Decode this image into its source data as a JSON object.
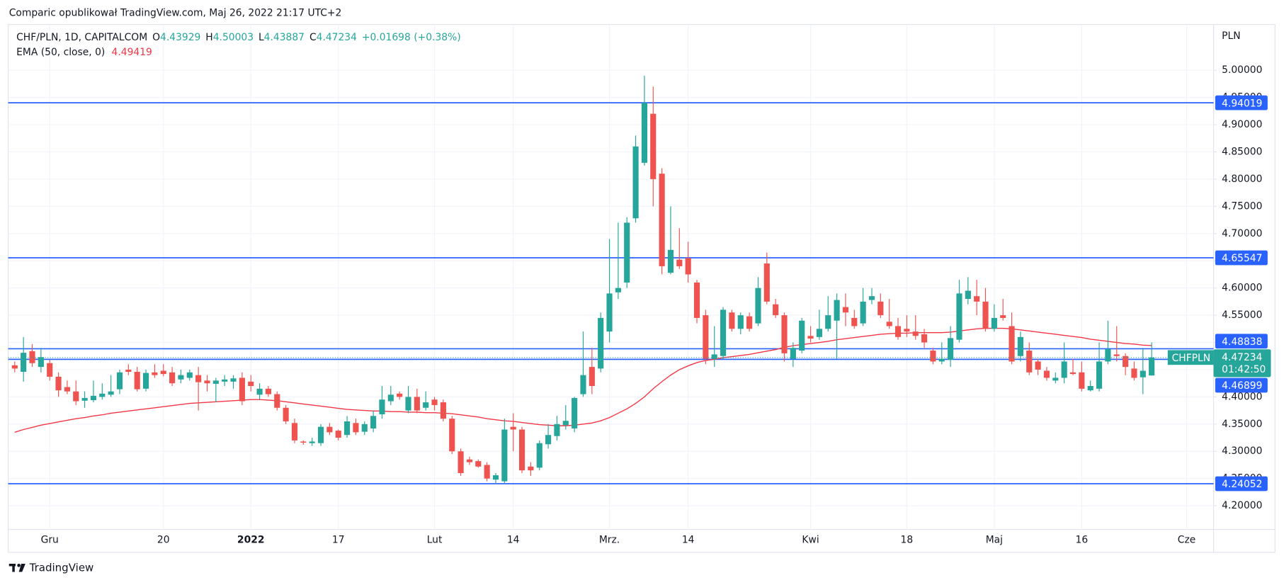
{
  "published": "Comparic opublikował TradingView.com, Maj 26, 2022 21:17 UTC+2",
  "brand": "TradingView",
  "chart_data": {
    "type": "candlestick",
    "title": "CHF/PLN, 1D, CAPITALCOM",
    "ohlc_labels": [
      "O",
      "H",
      "L",
      "C"
    ],
    "change": "+0.01698 (+0.38%)",
    "y_axis_label": "PLN",
    "countdown": "01:42:50",
    "grid": true,
    "ylim": [
      4.1565,
      5.084
    ],
    "yticks": [
      {
        "value": 4.2,
        "label": "4.20000"
      },
      {
        "value": 4.25,
        "label": "4.25000"
      },
      {
        "value": 4.3,
        "label": "4.30000"
      },
      {
        "value": 4.35,
        "label": "4.35000"
      },
      {
        "value": 4.4,
        "label": "4.40000"
      },
      {
        "value": 4.45,
        "label": "4.45000"
      },
      {
        "value": 4.5,
        "label": "4.50000"
      },
      {
        "value": 4.55,
        "label": "4.55000"
      },
      {
        "value": 4.6,
        "label": "4.60000"
      },
      {
        "value": 4.65,
        "label": "4.65000"
      },
      {
        "value": 4.7,
        "label": "4.70000"
      },
      {
        "value": 4.75,
        "label": "4.75000"
      },
      {
        "value": 4.8,
        "label": "4.80000"
      },
      {
        "value": 4.85,
        "label": "4.85000"
      },
      {
        "value": 4.9,
        "label": "4.90000"
      },
      {
        "value": 4.95,
        "label": "4.95000"
      },
      {
        "value": 5,
        "label": "5.00000"
      }
    ],
    "hlines": [
      4.94019,
      4.65547,
      4.48838,
      4.46899,
      4.24052
    ],
    "hline_color": "#2962ff",
    "categories": [
      null,
      null,
      null,
      null,
      "Gru",
      null,
      null,
      null,
      null,
      null,
      null,
      null,
      null,
      null,
      null,
      null,
      null,
      "20",
      null,
      null,
      null,
      null,
      null,
      null,
      null,
      null,
      null,
      "2022",
      null,
      null,
      null,
      null,
      null,
      null,
      null,
      null,
      null,
      "17",
      null,
      null,
      null,
      null,
      null,
      null,
      null,
      null,
      null,
      null,
      "Lut",
      null,
      null,
      null,
      null,
      null,
      null,
      null,
      null,
      "14",
      null,
      null,
      null,
      null,
      null,
      null,
      null,
      null,
      null,
      null,
      "Mrz.",
      null,
      null,
      null,
      null,
      null,
      null,
      null,
      null,
      "14",
      null,
      null,
      null,
      null,
      null,
      null,
      null,
      null,
      null,
      null,
      null,
      null,
      null,
      "Kwi",
      null,
      null,
      null,
      null,
      null,
      null,
      null,
      null,
      null,
      null,
      "18",
      null,
      null,
      null,
      null,
      null,
      null,
      null,
      null,
      null,
      "Maj",
      null,
      null,
      null,
      null,
      null,
      null,
      null,
      null,
      null,
      "16",
      null,
      null,
      null,
      null,
      null,
      null,
      null,
      null,
      null,
      null,
      null,
      "Cze"
    ],
    "series": [
      {
        "name": "CHFPLN",
        "type": "candlestick",
        "up_color": "#26a69a",
        "down_color": "#ef5350",
        "open": [
          4.458,
          4.446,
          4.484,
          4.455,
          4.462,
          4.437,
          4.418,
          4.41,
          4.393,
          4.394,
          4.4,
          4.404,
          4.414,
          4.45,
          4.446,
          4.415,
          4.445,
          4.448,
          4.445,
          4.432,
          4.435,
          4.44,
          4.43,
          4.424,
          4.428,
          4.428,
          4.435,
          4.428,
          4.404,
          4.415,
          4.405,
          4.38,
          4.352,
          4.318,
          4.315,
          4.315,
          4.345,
          4.338,
          4.33,
          4.352,
          4.336,
          4.342,
          4.368,
          4.392,
          4.406,
          4.375,
          4.4,
          4.38,
          4.395,
          4.39,
          4.36,
          4.3,
          4.285,
          4.282,
          4.275,
          4.248,
          4.245,
          4.345,
          4.34,
          4.272,
          4.27,
          4.313,
          4.328,
          4.348,
          4.342,
          4.405,
          4.455,
          4.452,
          4.52,
          4.592,
          4.61,
          4.728,
          4.83,
          4.92,
          4.81,
          4.628,
          4.652,
          4.655,
          4.61,
          4.55,
          4.47,
          4.475,
          4.555,
          4.525,
          4.548,
          4.535,
          4.645,
          4.57,
          4.55,
          4.47,
          4.485,
          4.512,
          4.51,
          4.525,
          4.54,
          4.565,
          4.545,
          4.535,
          4.578,
          4.575,
          4.538,
          4.53,
          4.525,
          4.52,
          4.515,
          4.485,
          4.465,
          4.468,
          4.505,
          4.58,
          4.585,
          4.575,
          4.525,
          4.55,
          4.53,
          4.475,
          4.485,
          4.465,
          4.448,
          4.43,
          4.435,
          4.445,
          4.445,
          4.412,
          4.415,
          4.465,
          4.478,
          4.475,
          4.452,
          4.436,
          4.43929,
          null,
          null,
          null,
          null
        ],
        "high": [
          4.465,
          4.51,
          4.497,
          4.49,
          4.468,
          4.445,
          4.43,
          4.43,
          4.41,
          4.43,
          4.425,
          4.44,
          4.45,
          4.46,
          4.455,
          4.45,
          4.46,
          4.46,
          4.455,
          4.45,
          4.45,
          4.455,
          4.44,
          4.435,
          4.44,
          4.44,
          4.445,
          4.44,
          4.425,
          4.42,
          4.41,
          4.385,
          4.36,
          4.32,
          4.325,
          4.35,
          4.352,
          4.34,
          4.365,
          4.36,
          4.355,
          4.375,
          4.42,
          4.42,
          4.41,
          4.42,
          4.415,
          4.41,
          4.4,
          4.395,
          4.365,
          4.305,
          4.29,
          4.285,
          4.28,
          4.26,
          4.36,
          4.37,
          4.345,
          4.28,
          4.32,
          4.35,
          4.365,
          4.385,
          4.4,
          4.52,
          4.49,
          4.555,
          4.69,
          4.72,
          4.73,
          4.88,
          4.99,
          4.97,
          4.82,
          4.75,
          4.71,
          4.685,
          4.615,
          4.56,
          4.53,
          4.565,
          4.56,
          4.555,
          4.555,
          4.62,
          4.665,
          4.58,
          4.555,
          4.5,
          4.545,
          4.53,
          4.56,
          4.585,
          4.59,
          4.59,
          4.56,
          4.6,
          4.6,
          4.59,
          4.58,
          4.545,
          4.55,
          4.55,
          4.525,
          4.49,
          4.5,
          4.53,
          4.615,
          4.62,
          4.615,
          4.6,
          4.57,
          4.58,
          4.555,
          4.52,
          4.5,
          4.47,
          4.455,
          4.445,
          4.5,
          4.47,
          4.465,
          4.43,
          4.5,
          4.54,
          4.53,
          4.48,
          4.465,
          4.49,
          4.50003,
          null,
          null,
          null,
          null
        ],
        "low": [
          4.445,
          4.428,
          4.455,
          4.445,
          4.43,
          4.4,
          4.405,
          4.385,
          4.38,
          4.39,
          4.395,
          4.4,
          4.405,
          4.44,
          4.41,
          4.41,
          4.435,
          4.438,
          4.42,
          4.425,
          4.43,
          4.375,
          4.41,
          4.39,
          4.42,
          4.415,
          4.385,
          4.41,
          4.395,
          4.4,
          4.375,
          4.35,
          4.315,
          4.312,
          4.31,
          4.31,
          4.33,
          4.32,
          4.325,
          4.33,
          4.33,
          4.335,
          4.36,
          4.385,
          4.395,
          4.37,
          4.37,
          4.375,
          4.375,
          4.355,
          4.295,
          4.255,
          4.275,
          4.27,
          4.245,
          4.24,
          4.24,
          4.3,
          4.26,
          4.255,
          4.265,
          4.305,
          4.32,
          4.34,
          4.335,
          4.4,
          4.405,
          4.445,
          4.5,
          4.58,
          4.6,
          4.72,
          4.825,
          4.75,
          4.625,
          4.625,
          4.635,
          4.61,
          4.535,
          4.46,
          4.455,
          4.47,
          4.52,
          4.515,
          4.52,
          4.53,
          4.57,
          4.545,
          4.465,
          4.455,
          4.48,
          4.5,
          4.505,
          4.52,
          4.47,
          4.53,
          4.525,
          4.53,
          4.57,
          4.545,
          4.525,
          4.505,
          4.51,
          4.505,
          4.49,
          4.46,
          4.46,
          4.455,
          4.5,
          4.57,
          4.55,
          4.52,
          4.52,
          4.54,
          4.46,
          4.465,
          4.44,
          4.44,
          4.43,
          4.425,
          4.425,
          4.44,
          4.41,
          4.41,
          4.41,
          4.46,
          4.465,
          4.44,
          4.43,
          4.405,
          4.43887,
          null,
          null,
          null,
          null
        ],
        "close": [
          4.452,
          4.481,
          4.462,
          4.473,
          4.437,
          4.412,
          4.41,
          4.392,
          4.398,
          4.402,
          4.406,
          4.41,
          4.445,
          4.446,
          4.414,
          4.444,
          4.44,
          4.442,
          4.425,
          4.44,
          4.445,
          4.427,
          4.425,
          4.43,
          4.432,
          4.434,
          4.392,
          4.42,
          4.415,
          4.405,
          4.38,
          4.355,
          4.32,
          4.316,
          4.318,
          4.345,
          4.335,
          4.325,
          4.355,
          4.335,
          4.35,
          4.365,
          4.395,
          4.404,
          4.4,
          4.4,
          4.375,
          4.39,
          4.385,
          4.36,
          4.3,
          4.26,
          4.28,
          4.272,
          4.25,
          4.256,
          4.34,
          4.34,
          4.265,
          4.265,
          4.315,
          4.33,
          4.35,
          4.356,
          4.398,
          4.44,
          4.42,
          4.545,
          4.59,
          4.6,
          4.72,
          4.86,
          4.94,
          4.8,
          4.64,
          4.67,
          4.64,
          4.625,
          4.545,
          4.47,
          4.478,
          4.56,
          4.525,
          4.55,
          4.525,
          4.6,
          4.575,
          4.55,
          4.48,
          4.49,
          4.54,
          4.507,
          4.525,
          4.55,
          4.578,
          4.555,
          4.53,
          4.575,
          4.585,
          4.55,
          4.53,
          4.51,
          4.52,
          4.512,
          4.5,
          4.465,
          4.47,
          4.508,
          4.59,
          4.595,
          4.575,
          4.525,
          4.545,
          4.545,
          4.465,
          4.51,
          4.445,
          4.45,
          4.435,
          4.435,
          4.465,
          4.442,
          4.415,
          4.42,
          4.465,
          4.488,
          4.475,
          4.455,
          4.435,
          4.448,
          4.47234,
          null,
          null,
          null,
          null
        ]
      },
      {
        "name": "EMA (50, close, 0)",
        "type": "line",
        "color": "#f23645",
        "values": [
          4.335,
          4.34,
          4.344,
          4.348,
          4.351,
          4.354,
          4.357,
          4.36,
          4.362,
          4.365,
          4.367,
          4.37,
          4.372,
          4.374,
          4.376,
          4.378,
          4.38,
          4.382,
          4.384,
          4.386,
          4.388,
          4.389,
          4.39,
          4.391,
          4.392,
          4.393,
          4.394,
          4.395,
          4.395,
          4.394,
          4.393,
          4.391,
          4.389,
          4.387,
          4.385,
          4.383,
          4.381,
          4.379,
          4.377,
          4.376,
          4.375,
          4.374,
          4.374,
          4.373,
          4.373,
          4.372,
          4.372,
          4.371,
          4.371,
          4.37,
          4.369,
          4.367,
          4.365,
          4.363,
          4.36,
          4.358,
          4.356,
          4.355,
          4.353,
          4.351,
          4.349,
          4.348,
          4.347,
          4.347,
          4.348,
          4.35,
          4.352,
          4.356,
          4.362,
          4.37,
          4.378,
          4.388,
          4.4,
          4.415,
          4.428,
          4.44,
          4.45,
          4.457,
          4.463,
          4.467,
          4.469,
          4.472,
          4.474,
          4.476,
          4.478,
          4.481,
          4.484,
          4.487,
          4.491,
          4.494,
          4.496,
          4.498,
          4.5,
          4.502,
          4.505,
          4.507,
          4.509,
          4.511,
          4.513,
          4.515,
          4.516,
          4.517,
          4.517,
          4.518,
          4.518,
          4.518,
          4.518,
          4.519,
          4.521,
          4.523,
          4.525,
          4.526,
          4.526,
          4.526,
          4.525,
          4.523,
          4.521,
          4.519,
          4.517,
          4.515,
          4.513,
          4.511,
          4.509,
          4.506,
          4.504,
          4.502,
          4.5,
          4.498,
          4.497,
          4.495,
          4.49419,
          null,
          null,
          null,
          null
        ]
      }
    ]
  }
}
